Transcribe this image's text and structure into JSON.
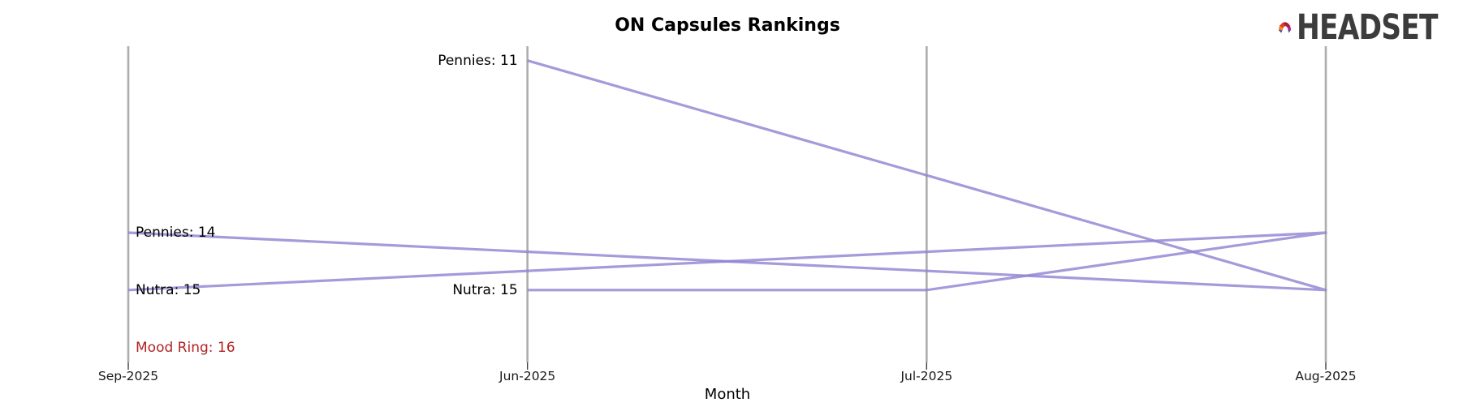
{
  "title": "ON Capsules Rankings",
  "logo": {
    "text": "HEADSET",
    "text_color": "#3c3c3c",
    "icon_colors": [
      "#F5821F",
      "#E23B2A",
      "#CE2028",
      "#951E2E",
      "#9E1C38",
      "#C9148B",
      "#28277E",
      "#4A46C0",
      "#4553CE",
      "#2A3189"
    ]
  },
  "chart_data": {
    "type": "line",
    "subtype": "ranking-bump",
    "title": "ON Capsules Rankings",
    "xlabel": "Month",
    "categories": [
      "Sep-2025",
      "Jun-2025",
      "Jul-2025",
      "Aug-2025"
    ],
    "chronological_order": [
      "Jun-2025",
      "Jul-2025",
      "Aug-2025",
      "Sep-2025"
    ],
    "rank_axis": {
      "range": [
        10.75,
        16.26
      ],
      "inverted": true,
      "gridlines": false
    },
    "legend": "none",
    "line_color": "#9184d2",
    "axis_color": "#adadad",
    "tick_color": "#3f3f3f",
    "flagged_label_color": "#b22222",
    "products": [
      {
        "name": "Pennies",
        "ranks": {
          "Jun-2025": 11,
          "Aug-2025": 15,
          "Sep-2025": 14
        }
      },
      {
        "name": "Nutra",
        "ranks": {
          "Jun-2025": 15,
          "Jul-2025": 15,
          "Aug-2025": 14,
          "Sep-2025": 15
        }
      },
      {
        "name": "Mood Ring",
        "ranks": {
          "Sep-2025": 16
        }
      }
    ],
    "point_labels": [
      {
        "text": "Pennies: 14",
        "month": "Sep-2025",
        "rank": 14,
        "align": "left",
        "color": "#000000"
      },
      {
        "text": "Nutra: 15",
        "month": "Sep-2025",
        "rank": 15,
        "align": "left",
        "color": "#000000"
      },
      {
        "text": "Mood Ring: 16",
        "month": "Sep-2025",
        "rank": 16,
        "align": "left",
        "color": "#b22222"
      },
      {
        "text": "Pennies: 11",
        "month": "Jun-2025",
        "rank": 11,
        "align": "right",
        "color": "#000000"
      },
      {
        "text": "Nutra: 15",
        "month": "Jun-2025",
        "rank": 15,
        "align": "right",
        "color": "#000000"
      }
    ]
  }
}
